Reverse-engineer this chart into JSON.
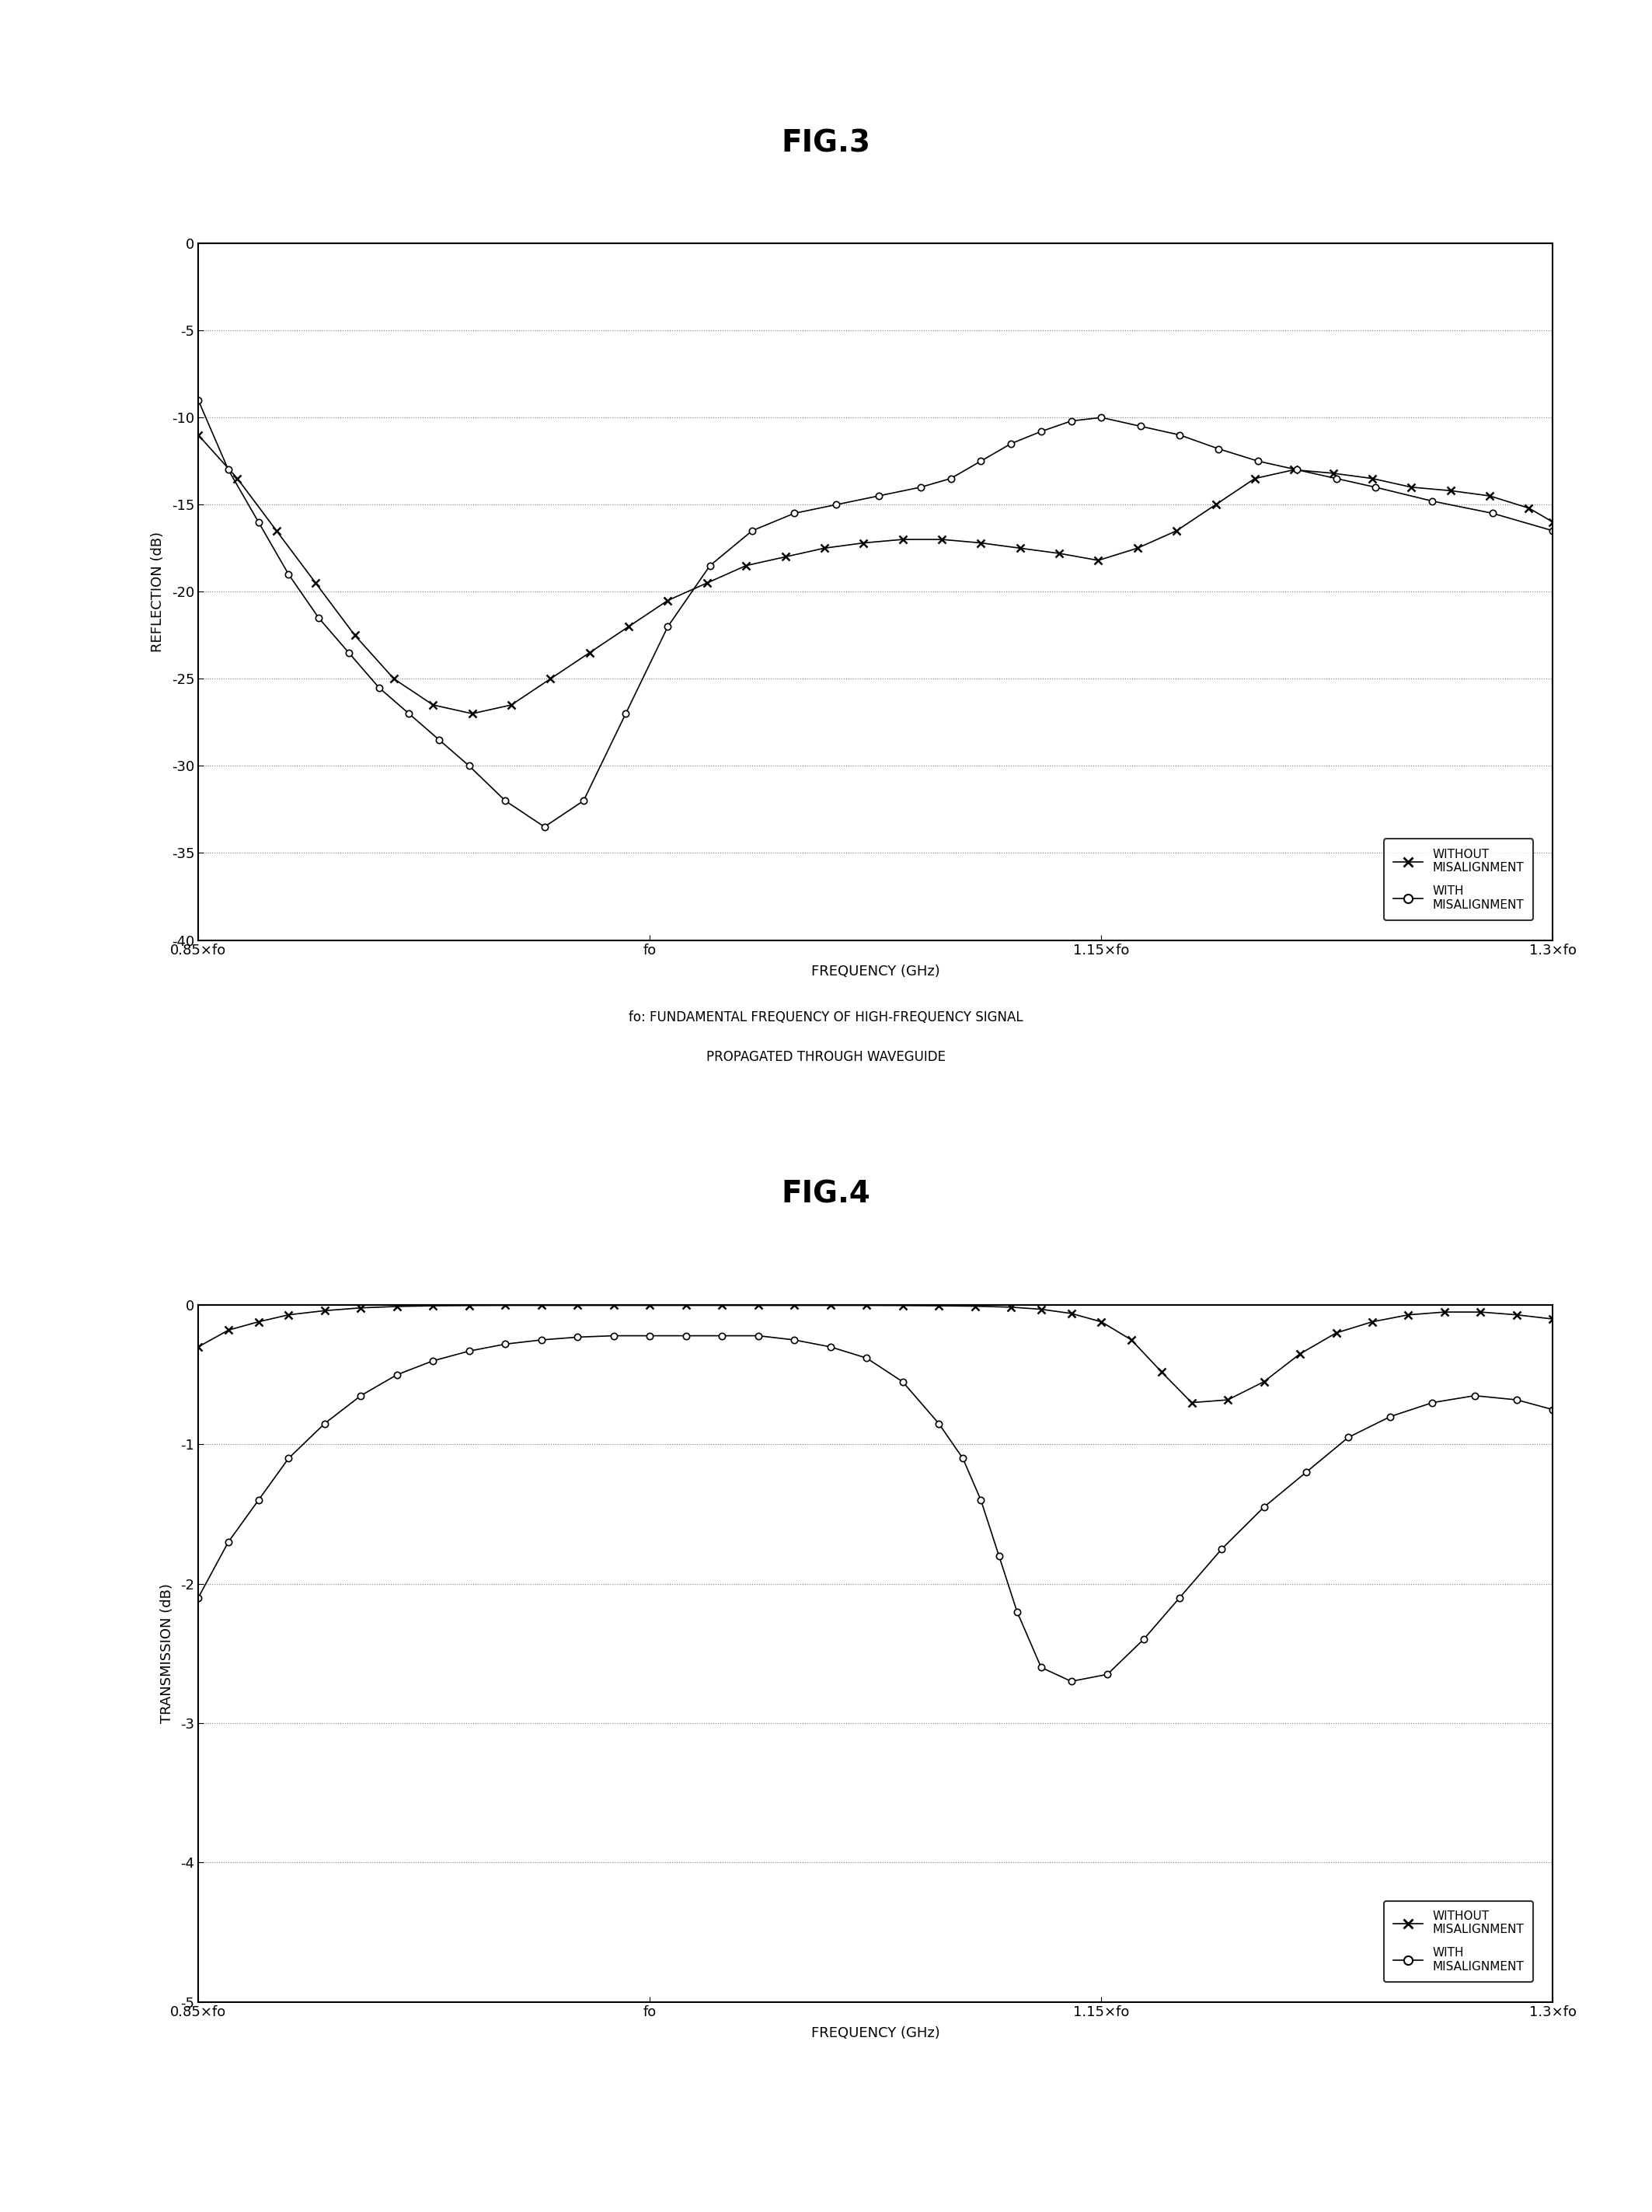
{
  "fig3_title": "FIG.3",
  "fig4_title": "FIG.4",
  "caption_line1": "fo: FUNDAMENTAL FREQUENCY OF HIGH-FREQUENCY SIGNAL",
  "caption_line2": "PROPAGATED THROUGH WAVEGUIDE",
  "xlabel": "FREQUENCY (GHz)",
  "fig3_ylabel": "REFLECTION (dB)",
  "fig4_ylabel": "TRANSMISSION (dB)",
  "xtick_labels": [
    "0.85×fo",
    "fo",
    "1.15×fo",
    "1.3×fo"
  ],
  "xtick_positions": [
    0.85,
    1.0,
    1.15,
    1.3
  ],
  "fig3_ylim": [
    -40,
    0
  ],
  "fig3_yticks": [
    0,
    -5,
    -10,
    -15,
    -20,
    -25,
    -30,
    -35,
    -40
  ],
  "fig4_ylim": [
    -5,
    0
  ],
  "fig4_yticks": [
    0,
    -1,
    -2,
    -3,
    -4,
    -5
  ],
  "legend_without": "WITHOUT\nMISALIGNMENT",
  "legend_with": "WITH\nMISALIGNMENT",
  "fig3_x_without": [
    0.85,
    0.863,
    0.876,
    0.889,
    0.902,
    0.915,
    0.928,
    0.941,
    0.954,
    0.967,
    0.98,
    0.993,
    1.006,
    1.019,
    1.032,
    1.045,
    1.058,
    1.071,
    1.084,
    1.097,
    1.11,
    1.123,
    1.136,
    1.149,
    1.162,
    1.175,
    1.188,
    1.201,
    1.214,
    1.227,
    1.24,
    1.253,
    1.266,
    1.279,
    1.292,
    1.3
  ],
  "fig3_y_without": [
    -11.0,
    -13.5,
    -16.5,
    -19.5,
    -22.5,
    -25.0,
    -26.5,
    -27.0,
    -26.5,
    -25.0,
    -23.5,
    -22.0,
    -20.5,
    -19.5,
    -18.5,
    -18.0,
    -17.5,
    -17.2,
    -17.0,
    -17.0,
    -17.2,
    -17.5,
    -17.8,
    -18.2,
    -17.5,
    -16.5,
    -15.0,
    -13.5,
    -13.0,
    -13.2,
    -13.5,
    -14.0,
    -14.2,
    -14.5,
    -15.2,
    -16.0
  ],
  "fig3_x_with": [
    0.85,
    0.86,
    0.87,
    0.88,
    0.89,
    0.9,
    0.91,
    0.92,
    0.93,
    0.94,
    0.952,
    0.965,
    0.978,
    0.992,
    1.006,
    1.02,
    1.034,
    1.048,
    1.062,
    1.076,
    1.09,
    1.1,
    1.11,
    1.12,
    1.13,
    1.14,
    1.15,
    1.163,
    1.176,
    1.189,
    1.202,
    1.215,
    1.228,
    1.241,
    1.26,
    1.28,
    1.3
  ],
  "fig3_y_with": [
    -9.0,
    -13.0,
    -16.0,
    -19.0,
    -21.5,
    -23.5,
    -25.5,
    -27.0,
    -28.5,
    -30.0,
    -32.0,
    -33.5,
    -32.0,
    -27.0,
    -22.0,
    -18.5,
    -16.5,
    -15.5,
    -15.0,
    -14.5,
    -14.0,
    -13.5,
    -12.5,
    -11.5,
    -10.8,
    -10.2,
    -10.0,
    -10.5,
    -11.0,
    -11.8,
    -12.5,
    -13.0,
    -13.5,
    -14.0,
    -14.8,
    -15.5,
    -16.5
  ],
  "fig4_x_without": [
    0.85,
    0.86,
    0.87,
    0.88,
    0.892,
    0.904,
    0.916,
    0.928,
    0.94,
    0.952,
    0.964,
    0.976,
    0.988,
    1.0,
    1.012,
    1.024,
    1.036,
    1.048,
    1.06,
    1.072,
    1.084,
    1.096,
    1.108,
    1.12,
    1.13,
    1.14,
    1.15,
    1.16,
    1.17,
    1.18,
    1.192,
    1.204,
    1.216,
    1.228,
    1.24,
    1.252,
    1.264,
    1.276,
    1.288,
    1.3
  ],
  "fig4_y_without": [
    -0.3,
    -0.18,
    -0.12,
    -0.07,
    -0.04,
    -0.02,
    -0.01,
    -0.005,
    -0.003,
    -0.002,
    -0.002,
    -0.002,
    -0.002,
    -0.002,
    -0.002,
    -0.002,
    -0.002,
    -0.002,
    -0.002,
    -0.002,
    -0.003,
    -0.005,
    -0.008,
    -0.015,
    -0.03,
    -0.06,
    -0.12,
    -0.25,
    -0.48,
    -0.7,
    -0.68,
    -0.55,
    -0.35,
    -0.2,
    -0.12,
    -0.07,
    -0.05,
    -0.05,
    -0.07,
    -0.1
  ],
  "fig4_x_with": [
    0.85,
    0.86,
    0.87,
    0.88,
    0.892,
    0.904,
    0.916,
    0.928,
    0.94,
    0.952,
    0.964,
    0.976,
    0.988,
    1.0,
    1.012,
    1.024,
    1.036,
    1.048,
    1.06,
    1.072,
    1.084,
    1.096,
    1.104,
    1.11,
    1.116,
    1.122,
    1.13,
    1.14,
    1.152,
    1.164,
    1.176,
    1.19,
    1.204,
    1.218,
    1.232,
    1.246,
    1.26,
    1.274,
    1.288,
    1.3
  ],
  "fig4_y_with": [
    -2.1,
    -1.7,
    -1.4,
    -1.1,
    -0.85,
    -0.65,
    -0.5,
    -0.4,
    -0.33,
    -0.28,
    -0.25,
    -0.23,
    -0.22,
    -0.22,
    -0.22,
    -0.22,
    -0.22,
    -0.25,
    -0.3,
    -0.38,
    -0.55,
    -0.85,
    -1.1,
    -1.4,
    -1.8,
    -2.2,
    -2.6,
    -2.7,
    -2.65,
    -2.4,
    -2.1,
    -1.75,
    -1.45,
    -1.2,
    -0.95,
    -0.8,
    -0.7,
    -0.65,
    -0.68,
    -0.75
  ]
}
